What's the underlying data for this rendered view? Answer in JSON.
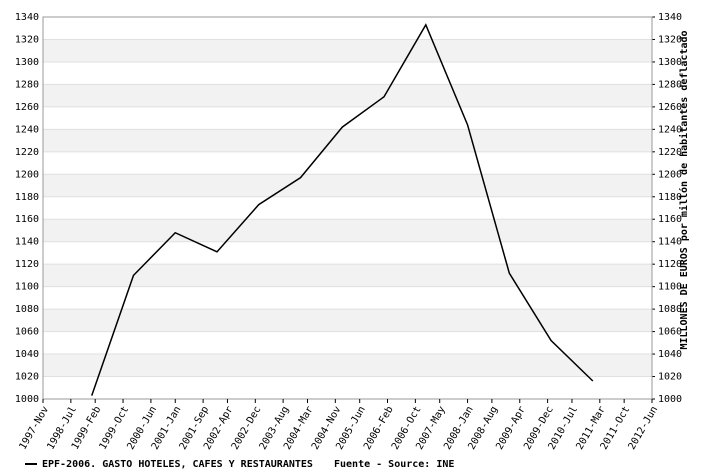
{
  "chart_data": {
    "type": "line",
    "x": [
      1999,
      2000,
      2001,
      2002,
      2003,
      2004,
      2005,
      2006,
      2007,
      2008,
      2009,
      2010,
      2011
    ],
    "series": [
      {
        "name": "EPF-2006. GASTO HOTELES, CAFES Y RESTAURANTES",
        "color": "#000000",
        "values": [
          1003,
          1110,
          1148,
          1131,
          1173,
          1197,
          1242,
          1269,
          1333,
          1244,
          1112,
          1052,
          1016
        ]
      }
    ],
    "source": "Fuente - Source: INE",
    "y_label": "MILLONES DE EUROS por millón de habitantes deflactado",
    "xlim": [
      1997.833,
      2012.417
    ],
    "xticks": [
      {
        "value": 1997.833,
        "label": "1997-Nov"
      },
      {
        "value": 1998.5,
        "label": "1998-Jul"
      },
      {
        "value": 1999.083,
        "label": "1999-Feb"
      },
      {
        "value": 1999.75,
        "label": "1999-Oct"
      },
      {
        "value": 2000.417,
        "label": "2000-Jun"
      },
      {
        "value": 2001.0,
        "label": "2001-Jan"
      },
      {
        "value": 2001.667,
        "label": "2001-Sep"
      },
      {
        "value": 2002.25,
        "label": "2002-Apr"
      },
      {
        "value": 2002.917,
        "label": "2002-Dec"
      },
      {
        "value": 2003.583,
        "label": "2003-Aug"
      },
      {
        "value": 2004.167,
        "label": "2004-Mar"
      },
      {
        "value": 2004.833,
        "label": "2004-Nov"
      },
      {
        "value": 2005.417,
        "label": "2005-Jun"
      },
      {
        "value": 2006.083,
        "label": "2006-Feb"
      },
      {
        "value": 2006.75,
        "label": "2006-Oct"
      },
      {
        "value": 2007.333,
        "label": "2007-May"
      },
      {
        "value": 2008.0,
        "label": "2008-Jan"
      },
      {
        "value": 2008.583,
        "label": "2008-Aug"
      },
      {
        "value": 2009.25,
        "label": "2009-Apr"
      },
      {
        "value": 2009.917,
        "label": "2009-Dec"
      },
      {
        "value": 2010.5,
        "label": "2010-Jul"
      },
      {
        "value": 2011.167,
        "label": "2011-Mar"
      },
      {
        "value": 2011.75,
        "label": "2011-Oct"
      },
      {
        "value": 2012.417,
        "label": "2012-Jun"
      }
    ],
    "ylim": [
      1000,
      1340
    ],
    "yticks": [
      1000,
      1020,
      1040,
      1060,
      1080,
      1100,
      1120,
      1140,
      1160,
      1180,
      1200,
      1220,
      1240,
      1260,
      1280,
      1300,
      1320,
      1340
    ],
    "grid": true
  }
}
